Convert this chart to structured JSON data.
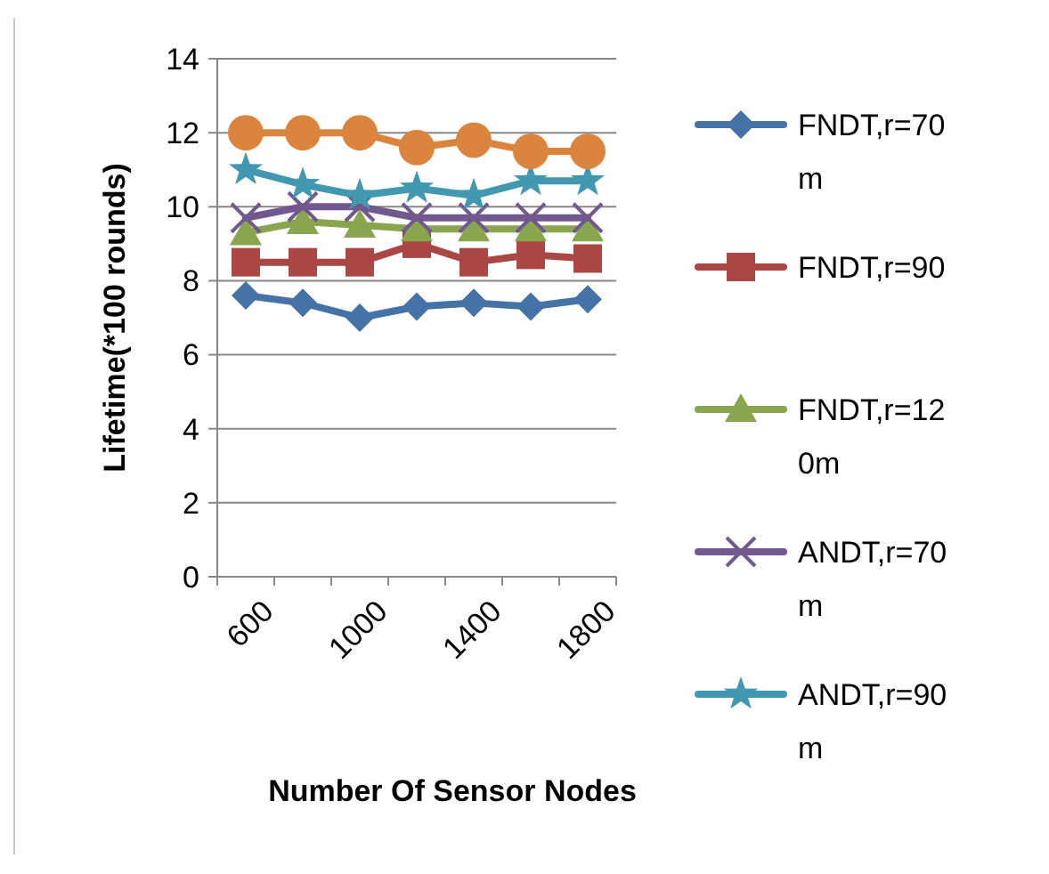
{
  "chart_data": {
    "type": "line",
    "xlabel": "Number Of Sensor Nodes",
    "ylabel": "Lifetime(*100 rounds)",
    "categories": [
      "600",
      null,
      "1000",
      null,
      "1400",
      null,
      "1800"
    ],
    "ylim": [
      0,
      14
    ],
    "yticks": [
      0,
      2,
      4,
      6,
      8,
      10,
      12,
      14
    ],
    "grid": "y",
    "legend": "right",
    "series": [
      {
        "name": "FNDT,r=70m",
        "color": "#4572a7",
        "marker": "diamond",
        "values": [
          7.6,
          7.4,
          7.0,
          7.3,
          7.4,
          7.3,
          7.5
        ]
      },
      {
        "name": "FNDT,r=90",
        "color": "#aa4643",
        "marker": "square",
        "values": [
          8.5,
          8.5,
          8.5,
          9.0,
          8.5,
          8.7,
          8.6
        ]
      },
      {
        "name": "FNDT,r=120m",
        "color": "#89a54e",
        "marker": "triangle",
        "values": [
          9.3,
          9.6,
          9.5,
          9.4,
          9.4,
          9.4,
          9.4
        ]
      },
      {
        "name": "ANDT,r=70m",
        "color": "#71588f",
        "marker": "cross",
        "values": [
          9.7,
          10.0,
          10.0,
          9.7,
          9.7,
          9.7,
          9.7
        ]
      },
      {
        "name": "ANDT,r=90m",
        "color": "#4198af",
        "marker": "star",
        "values": [
          11.0,
          10.6,
          10.3,
          10.5,
          10.3,
          10.7,
          10.7
        ]
      },
      {
        "color": "#db843d",
        "marker": "circle",
        "values": [
          12.0,
          12.0,
          12.0,
          11.6,
          11.8,
          11.5,
          11.5
        ]
      }
    ]
  }
}
